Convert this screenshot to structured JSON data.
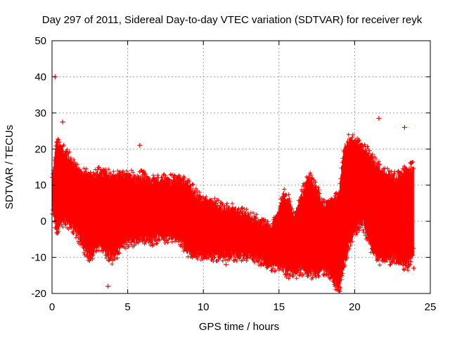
{
  "chart_data": {
    "type": "scatter",
    "title": "Day 297 of 2011, Sidereal Day-to-day VTEC variation (SDTVAR) for receiver reyk",
    "xlabel": "GPS time / hours",
    "ylabel": "SDTVAR / TECUs",
    "xlim": [
      0,
      25
    ],
    "ylim": [
      -20,
      50
    ],
    "x_ticks": [
      0,
      5,
      10,
      15,
      20,
      25
    ],
    "y_ticks": [
      -20,
      -10,
      0,
      10,
      20,
      30,
      40,
      50
    ],
    "x_tick_labels": [
      "0",
      "5",
      "10",
      "15",
      "20",
      "25"
    ],
    "y_tick_labels": [
      "-20",
      "-10",
      "0",
      "10",
      "20",
      "30",
      "40",
      "50"
    ],
    "grid": true,
    "marker": "plus",
    "error_bars": true,
    "series": [
      {
        "name": "SDTVAR",
        "color": "#ff0000",
        "envelope": {
          "x": [
            0.0,
            0.3,
            0.6,
            1.0,
            1.5,
            2.0,
            2.5,
            3.0,
            3.5,
            4.0,
            4.5,
            5.0,
            5.5,
            6.0,
            6.5,
            7.0,
            7.5,
            8.0,
            8.5,
            9.0,
            9.5,
            10.0,
            10.5,
            11.0,
            11.5,
            12.0,
            12.5,
            13.0,
            13.5,
            14.0,
            14.5,
            15.0,
            15.3,
            15.6,
            16.0,
            16.5,
            17.0,
            17.5,
            18.0,
            18.5,
            18.8,
            19.0,
            19.3,
            19.6,
            20.0,
            20.5,
            21.0,
            21.5,
            22.0,
            22.5,
            23.0,
            23.5,
            23.9
          ],
          "upper": [
            11,
            22,
            20,
            18,
            15,
            13,
            12,
            13,
            13,
            12,
            12,
            12,
            12,
            12,
            11,
            11,
            11,
            11,
            11,
            10,
            7,
            5,
            5,
            4,
            3,
            3,
            2,
            1,
            0,
            -1,
            -2,
            3,
            7,
            6,
            1,
            7,
            12,
            8,
            4,
            5,
            6,
            8,
            20,
            22,
            22,
            20,
            18,
            15,
            13,
            12,
            12,
            14,
            15
          ],
          "lower": [
            4,
            -2,
            0,
            0,
            -2,
            -6,
            -10,
            -6,
            -8,
            -10,
            -7,
            -5,
            -5,
            -4,
            -5,
            -4,
            -4,
            -4,
            -5,
            -8,
            -9,
            -9,
            -9,
            -9,
            -9,
            -9,
            -9,
            -9,
            -10,
            -11,
            -12,
            -12,
            -13,
            -14,
            -14,
            -13,
            -14,
            -14,
            -13,
            -15,
            -18,
            -18,
            -12,
            -7,
            -2,
            0,
            -6,
            -10,
            -10,
            -10,
            -11,
            -12,
            -8
          ]
        },
        "notable_points": [
          {
            "x": 0.2,
            "y": 40
          },
          {
            "x": 0.7,
            "y": 27.5
          },
          {
            "x": 3.7,
            "y": -18
          },
          {
            "x": 5.8,
            "y": 21
          },
          {
            "x": 11.5,
            "y": -12
          },
          {
            "x": 21.6,
            "y": 28.5
          },
          {
            "x": 23.3,
            "y": 26
          },
          {
            "x": 23.9,
            "y": -13
          }
        ]
      }
    ]
  }
}
